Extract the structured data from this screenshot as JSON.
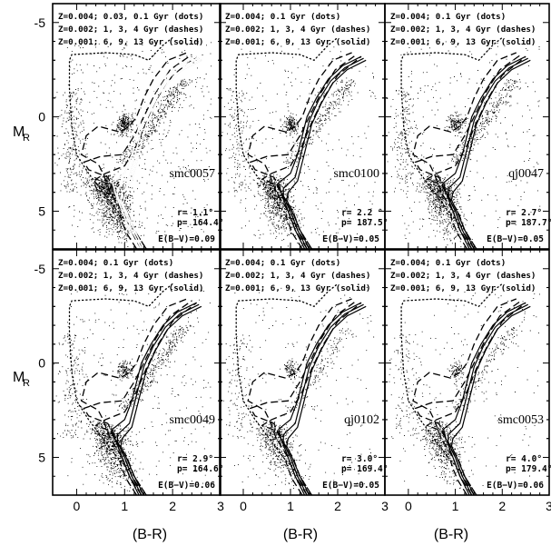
{
  "figure": {
    "ylabel_main": "M",
    "ylabel_sub": "R",
    "xlabel": "(B-R)",
    "xlim": [
      -0.5,
      3.0
    ],
    "ylim": [
      -6.0,
      7.0
    ],
    "x_ticks": [
      0,
      1,
      2,
      3
    ],
    "x_tick_labels": [
      "0",
      "1",
      "2",
      "3"
    ],
    "y_ticks": [
      -5,
      0,
      5
    ],
    "y_tick_labels": [
      "-5",
      "0",
      "5"
    ]
  },
  "legend": {
    "line1": "Z=0.004; 0.03, 0.1 Gyr (dots)",
    "line1_alt": "Z=0.004; 0.1 Gyr (dots)",
    "line2": "Z=0.002; 1, 3, 4 Gyr (dashes)",
    "line3": "Z=0.001; 6, 9, 13 Gyr (solid)"
  },
  "colors": {
    "ink": "#000000",
    "background": "#ffffff",
    "overlay_light": "#ffffff"
  },
  "chart_data": [
    {
      "type": "scatter",
      "field": "smc0057",
      "r_label": "r=",
      "r_value": "1.1°",
      "p_label": "p=",
      "p_value": "164.4°",
      "ebv": "E(B−V)=0.09",
      "legend_line1": "Z=0.004; 0.03, 0.1 Gyr (dots)",
      "density": "high",
      "xlim": [
        -0.5,
        3.0
      ],
      "ylim": [
        -6.0,
        7.0
      ],
      "xlabel": "",
      "ylabel": "M_R"
    },
    {
      "type": "scatter",
      "field": "smc0100",
      "r_label": "r=",
      "r_value": "2.2 °",
      "p_label": "p=",
      "p_value": "187.5°",
      "ebv": "E(B−V)=0.05",
      "legend_line1": "Z=0.004; 0.1 Gyr (dots)",
      "density": "medium",
      "xlim": [
        -0.5,
        3.0
      ],
      "ylim": [
        -6.0,
        7.0
      ],
      "xlabel": "",
      "ylabel": ""
    },
    {
      "type": "scatter",
      "field": "qj0047",
      "r_label": "r=",
      "r_value": "2.7°",
      "p_label": "p=",
      "p_value": "187.7°",
      "ebv": "E(B−V)=0.05",
      "legend_line1": "Z=0.004; 0.1 Gyr (dots)",
      "density": "medium",
      "xlim": [
        -0.5,
        3.0
      ],
      "ylim": [
        -6.0,
        7.0
      ],
      "xlabel": "",
      "ylabel": ""
    },
    {
      "type": "scatter",
      "field": "smc0049",
      "r_label": "r=",
      "r_value": "2.9°",
      "p_label": "p=",
      "p_value": "164.6°",
      "ebv": "E(B−V)=0.06",
      "legend_line1": "Z=0.004; 0.1 Gyr (dots)",
      "density": "medium",
      "xlim": [
        -0.5,
        3.0
      ],
      "ylim": [
        -6.0,
        7.0
      ],
      "xlabel": "(B-R)",
      "ylabel": "M_R"
    },
    {
      "type": "scatter",
      "field": "qj0102",
      "r_label": "r=",
      "r_value": "3.0°",
      "p_label": "p=",
      "p_value": "169.4°",
      "ebv": "E(B−V)=0.05",
      "legend_line1": "Z=0.004; 0.1 Gyr (dots)",
      "density": "low",
      "xlim": [
        -0.5,
        3.0
      ],
      "ylim": [
        -6.0,
        7.0
      ],
      "xlabel": "(B-R)",
      "ylabel": ""
    },
    {
      "type": "scatter",
      "field": "smc0053",
      "r_label": "r=",
      "r_value": "4.0°",
      "p_label": "p=",
      "p_value": "179.4°",
      "ebv": "E(B−V)=0.06",
      "legend_line1": "Z=0.004; 0.1 Gyr (dots)",
      "density": "low",
      "xlim": [
        -0.5,
        3.0
      ],
      "ylim": [
        -6.0,
        7.0
      ],
      "xlabel": "(B-R)",
      "ylabel": ""
    }
  ]
}
